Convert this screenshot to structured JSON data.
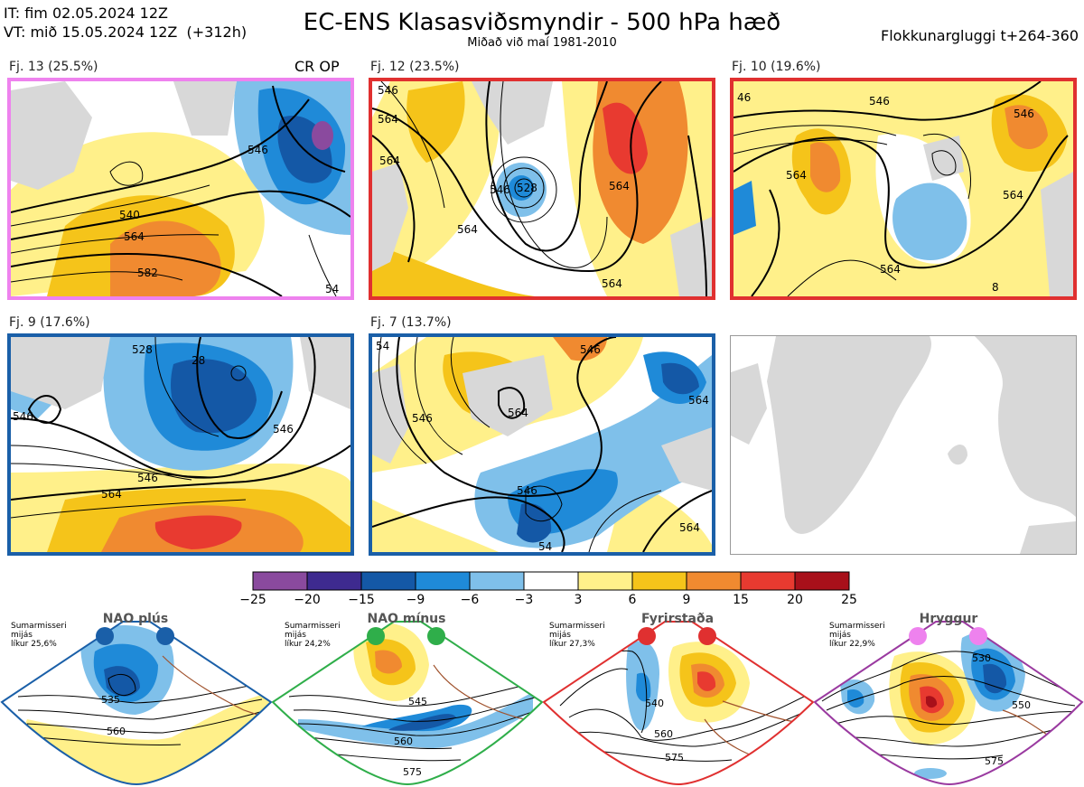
{
  "header": {
    "line1": "IT: fim 02.05.2024 12Z",
    "line2": "VT: mið 15.05.2024 12Z  (+312h)",
    "title": "EC-ENS Klasasviðsmyndir - 500 hPa hæð",
    "subtitle": "Miðað við maí 1981-2010",
    "window": "Flokkunargluggi t+264-360"
  },
  "panels": [
    {
      "label": "Fj. 13 (25.5%)",
      "extra": "CR OP",
      "border": "#ee82ee",
      "contours": [
        "546",
        "540",
        "564",
        "582",
        "54"
      ]
    },
    {
      "label": "Fj. 12 (23.5%)",
      "border": "#e03030",
      "contours": [
        "546",
        "564",
        "564",
        "546",
        "564",
        "528",
        "564",
        "564"
      ]
    },
    {
      "label": "Fj. 10 (19.6%)",
      "border": "#e03030",
      "contours": [
        "46",
        "546",
        "564",
        "564",
        "546",
        "564",
        "8"
      ]
    },
    {
      "label": "Fj. 9 (17.6%)",
      "border": "#1a5fa8",
      "contours": [
        "528",
        "28",
        "546",
        "546",
        "546",
        "564"
      ]
    },
    {
      "label": "Fj. 7 (13.7%)",
      "border": "#1a5fa8",
      "contours": [
        "54",
        "564",
        "546",
        "546",
        "546",
        "564",
        "564",
        "54"
      ]
    }
  ],
  "colorbar": {
    "ticks": [
      "−25",
      "−20",
      "−15",
      "−9",
      "−6",
      "−3",
      "3",
      "6",
      "9",
      "15",
      "20",
      "25"
    ],
    "colors": [
      "#8a4a9e",
      "#3e2a8f",
      "#1458a6",
      "#1f8ad8",
      "#7fc0ea",
      "#ffffff",
      "#fff08a",
      "#f5c41a",
      "#f08a30",
      "#e83a30",
      "#a8101a"
    ]
  },
  "regimes": [
    {
      "title": "NAO plús",
      "note": "Sumarmisseri\nmijás\nlíkur 25,6%",
      "color": "#1a5fa8",
      "contours": [
        "535",
        "560"
      ]
    },
    {
      "title": "NAO mínus",
      "note": "Sumarmisseri\nmijás\nlíkur 24,2%",
      "color": "#2fae4a",
      "contours": [
        "545",
        "560",
        "575"
      ]
    },
    {
      "title": "Fyrirstaða",
      "note": "Sumarmisseri\nmijás\nlíkur 27,3%",
      "color": "#e03030",
      "contours": [
        "540",
        "560",
        "575"
      ]
    },
    {
      "title": "Hryggur",
      "note": "Sumarmisseri\nmijás\nlíkur 22,9%",
      "color": "#9a3aa0",
      "contours": [
        "530",
        "550",
        "575"
      ]
    }
  ]
}
